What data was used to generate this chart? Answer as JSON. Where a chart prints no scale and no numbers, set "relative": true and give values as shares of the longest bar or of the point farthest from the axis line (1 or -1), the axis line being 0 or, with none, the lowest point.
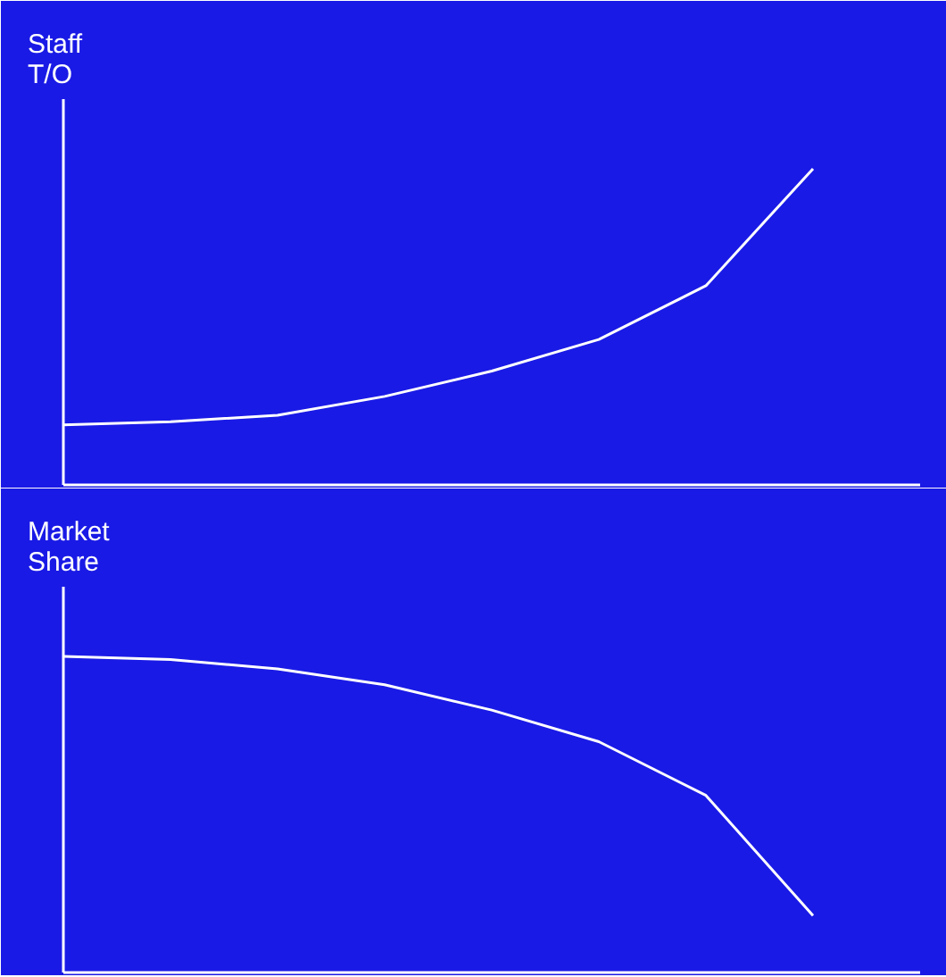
{
  "chart_data": [
    {
      "type": "line",
      "relative": true,
      "ylabel": "Staff\nT/O",
      "categories": [
        null,
        null,
        null,
        null,
        null,
        null,
        null,
        null,
        null
      ],
      "series": [
        {
          "color": "#ffffff",
          "values": [
            0.19,
            0.2,
            0.22,
            0.28,
            0.36,
            0.46,
            0.63,
            1.0,
            null
          ]
        }
      ]
    },
    {
      "type": "line",
      "relative": true,
      "ylabel": "Market\nShare",
      "categories": [
        null,
        null,
        null,
        null,
        null,
        null,
        null,
        null,
        null
      ],
      "series": [
        {
          "color": "#ffffff",
          "values": [
            1.0,
            0.99,
            0.96,
            0.91,
            0.83,
            0.73,
            0.56,
            0.18,
            null
          ]
        }
      ]
    }
  ]
}
